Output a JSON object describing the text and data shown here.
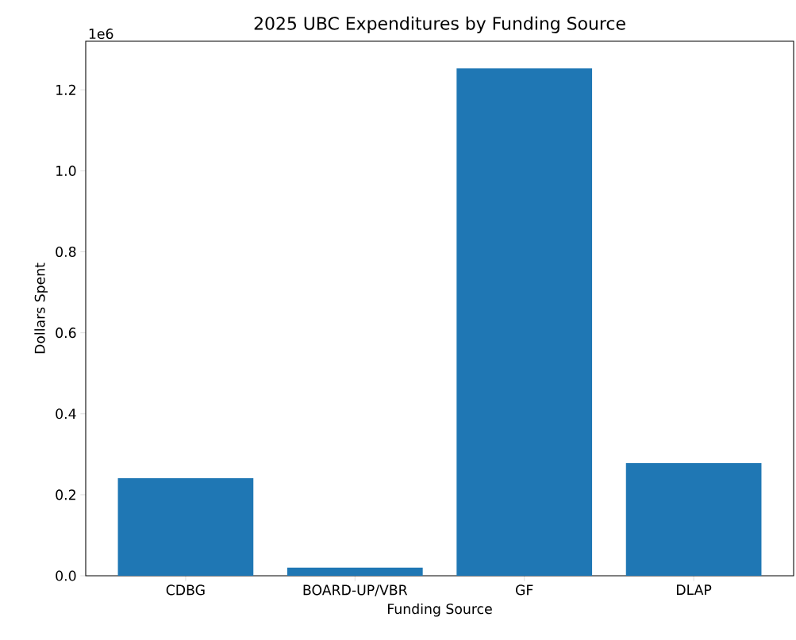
{
  "chart_data": {
    "type": "bar",
    "title": "2025 UBC Expenditures by Funding Source",
    "xlabel": "Funding Source",
    "ylabel": "Dollars Spent",
    "categories": [
      "CDBG",
      "BOARD-UP/VBR",
      "GF",
      "DLAP"
    ],
    "values": [
      0.241,
      0.02,
      1.253,
      0.278
    ],
    "color": "#1f77b4",
    "ylim": [
      0,
      1.32
    ],
    "yticks": [
      {
        "value": 0,
        "label": "0.0"
      },
      0.2,
      0.4,
      0.6,
      0.8,
      {
        "value": 1,
        "label": "1.0"
      },
      1.2
    ],
    "annotations": [
      "1e6"
    ],
    "grid": false
  }
}
